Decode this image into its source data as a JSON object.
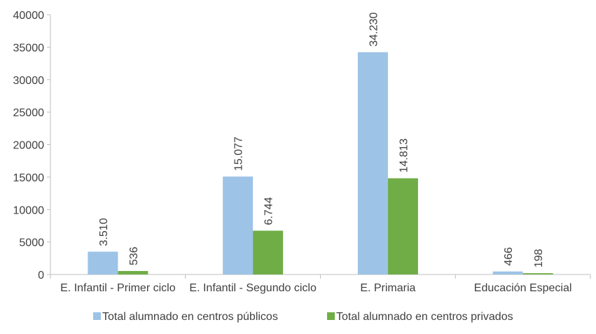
{
  "chart_data": {
    "type": "bar",
    "categories": [
      "E. Infantil - Primer ciclo",
      "E. Infantil - Segundo ciclo",
      "E. Primaria",
      "Educación Especial"
    ],
    "series": [
      {
        "name": "Total alumnado en centros públicos",
        "values": [
          3510,
          15077,
          34230,
          466
        ],
        "labels": [
          "3.510",
          "15.077",
          "34.230",
          "466"
        ],
        "color": "#9DC3E6"
      },
      {
        "name": "Total alumnado en centros privados",
        "values": [
          536,
          6744,
          14813,
          198
        ],
        "labels": [
          "536",
          "6.744",
          "14.813",
          "198"
        ],
        "color": "#70AD47"
      }
    ],
    "ylim": [
      0,
      40000
    ],
    "yticks": [
      0,
      5000,
      10000,
      15000,
      20000,
      25000,
      30000,
      35000,
      40000
    ],
    "grid": false,
    "legend_position": "bottom",
    "axis_color": "#BFBFBF",
    "text_color": "#404040"
  }
}
